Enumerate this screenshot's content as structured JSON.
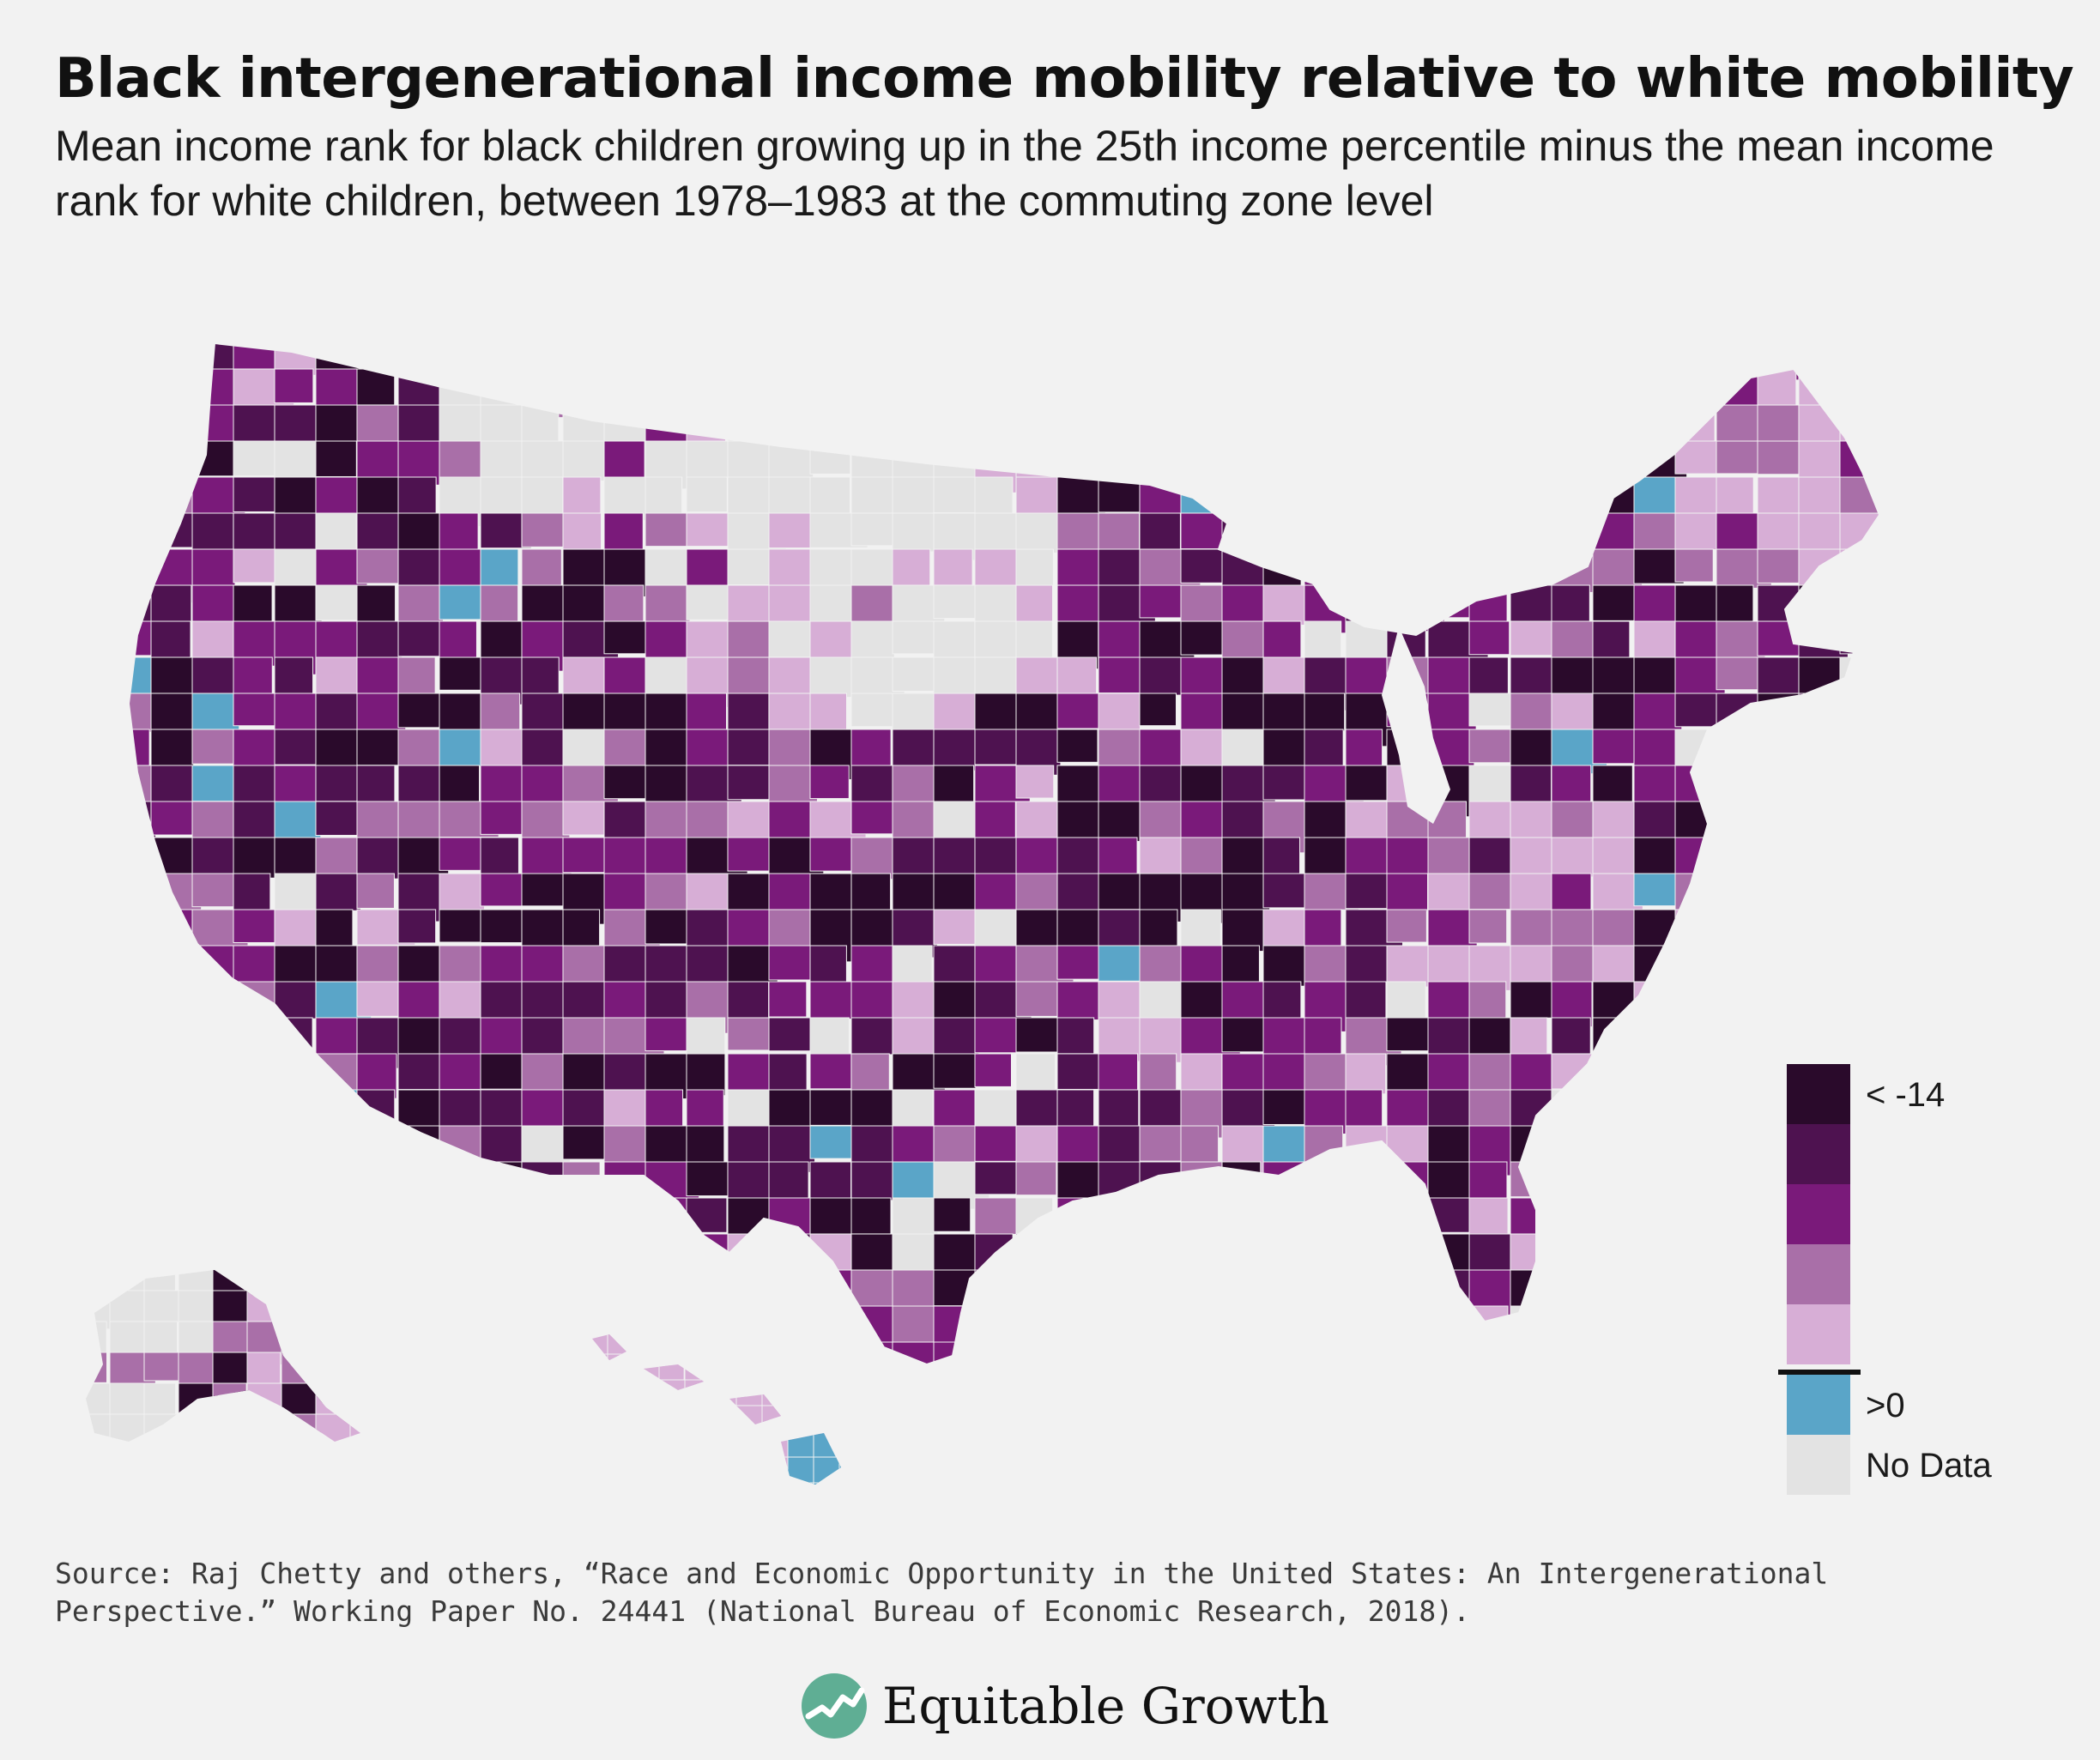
{
  "header": {
    "title": "Black intergenerational income mobility relative to white mobility",
    "subtitle": "Mean income rank for black children growing up in the 25th income percentile minus the mean income rank for white children, between 1978–1983 at the commuting zone level"
  },
  "legend": {
    "bins": [
      {
        "color": "#2a0a2b"
      },
      {
        "color": "#4e1250"
      },
      {
        "color": "#7a1a7a"
      },
      {
        "color": "#a96fa8"
      },
      {
        "color": "#d7aed6"
      },
      {
        "color": "#5aa5c8"
      },
      {
        "color": "#e3e3e3"
      }
    ],
    "labels": {
      "min": "< -14",
      "positive": ">0",
      "no_data": "No Data"
    }
  },
  "source": "Source: Raj Chetty and others, “Race and Economic Opportunity in the United States: An Intergenerational Perspective.” Working Paper No. 24441 (National Bureau of Economic Research, 2018).",
  "brand": {
    "name": "Equitable Growth",
    "logo_icon": "growth-chart-logo"
  }
}
